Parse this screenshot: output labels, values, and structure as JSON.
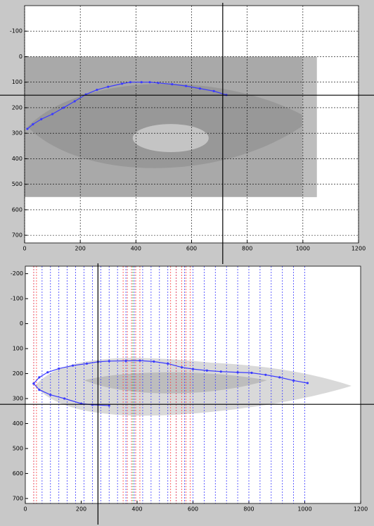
{
  "chart_data": [
    {
      "type": "line",
      "xlim": [
        0,
        1200
      ],
      "ylim": [
        -200,
        730
      ],
      "y_reversed": true,
      "grid": true,
      "xticks": [
        0,
        200,
        400,
        600,
        800,
        1000,
        1200
      ],
      "yticks": [
        -100,
        0,
        100,
        200,
        300,
        400,
        500,
        600,
        700
      ],
      "image": {
        "x": [
          0,
          1050
        ],
        "y": [
          0,
          550
        ],
        "color": "#a9a9a9"
      },
      "crosshair": {
        "x": 712,
        "y": 151
      },
      "series": [
        {
          "color": "#3b3bff",
          "x": [
            10,
            30,
            60,
            100,
            140,
            180,
            220,
            260,
            300,
            350,
            380,
            420,
            450,
            480,
            530,
            580,
            630,
            680,
            725
          ],
          "values": [
            283,
            265,
            245,
            225,
            200,
            175,
            148,
            130,
            118,
            106,
            100,
            100,
            100,
            103,
            108,
            115,
            125,
            135,
            150
          ]
        }
      ]
    },
    {
      "type": "line",
      "xlim": [
        0,
        1200
      ],
      "ylim": [
        -230,
        720
      ],
      "y_reversed": true,
      "grid": false,
      "xticks": [
        0,
        200,
        400,
        600,
        800,
        1000,
        1200
      ],
      "yticks": [
        -200,
        -100,
        0,
        100,
        200,
        300,
        400,
        500,
        600,
        700
      ],
      "crosshair": {
        "x": 260,
        "y": 323
      },
      "vlines": [
        {
          "color": "#3b3bff",
          "x": [
            30,
            60,
            90,
            120,
            150,
            180,
            210,
            240,
            270,
            300,
            330,
            360,
            390,
            420,
            450,
            480,
            510,
            540,
            570,
            600,
            640,
            680,
            720,
            760,
            800,
            840,
            880,
            920,
            960,
            1000
          ]
        },
        {
          "color": "#ff4040",
          "x": [
            30,
            40,
            350,
            365,
            380,
            395,
            410,
            520,
            540,
            560,
            575,
            590
          ]
        },
        {
          "color": "#30b030",
          "x": [
            385
          ]
        }
      ],
      "series": [
        {
          "color": "#3b3bff",
          "x": [
            30,
            50,
            80,
            120,
            170,
            220,
            260,
            300,
            360,
            410,
            460,
            510,
            560,
            600,
            650,
            700,
            760,
            810,
            860,
            910,
            960,
            1010
          ],
          "values": [
            240,
            215,
            195,
            180,
            168,
            160,
            153,
            150,
            149,
            148,
            152,
            160,
            175,
            182,
            188,
            192,
            195,
            197,
            205,
            215,
            228,
            238
          ]
        },
        {
          "color": "#3b3bff",
          "x": [
            30,
            50,
            90,
            140,
            200,
            240,
            300
          ],
          "values": [
            240,
            265,
            285,
            300,
            320,
            325,
            328
          ]
        }
      ]
    }
  ]
}
